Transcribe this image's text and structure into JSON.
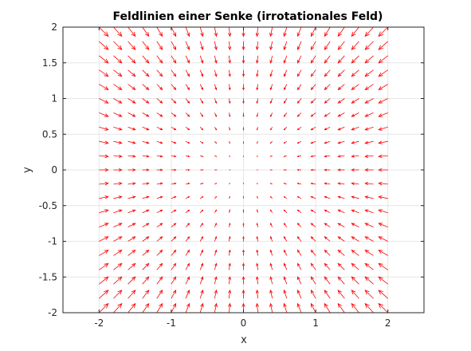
{
  "chart_data": {
    "type": "quiver",
    "title": "Feldlinien einer Senke (irrotationales Feld)",
    "xlabel": "x",
    "ylabel": "y",
    "xlim": [
      -2.5,
      2.5
    ],
    "ylim": [
      -2,
      2
    ],
    "xticks": [
      -2,
      -1,
      0,
      1,
      2
    ],
    "xtick_labels": [
      "-2",
      "-1",
      "0",
      "1",
      "2"
    ],
    "yticks": [
      -2,
      -1.5,
      -1,
      -0.5,
      0,
      0.5,
      1,
      1.5,
      2
    ],
    "ytick_labels": [
      "-2",
      "-1.5",
      "-1",
      "-0.5",
      "0",
      "0.5",
      "1",
      "1.5",
      "2"
    ],
    "grid": true,
    "field": {
      "u": "-x",
      "v": "-y",
      "x_range": [
        -2,
        2
      ],
      "y_range": [
        -2,
        2
      ],
      "samples": 21
    },
    "color": "#ff0000",
    "grid_color": "#e6e6e6",
    "axis_color": "#262626"
  }
}
